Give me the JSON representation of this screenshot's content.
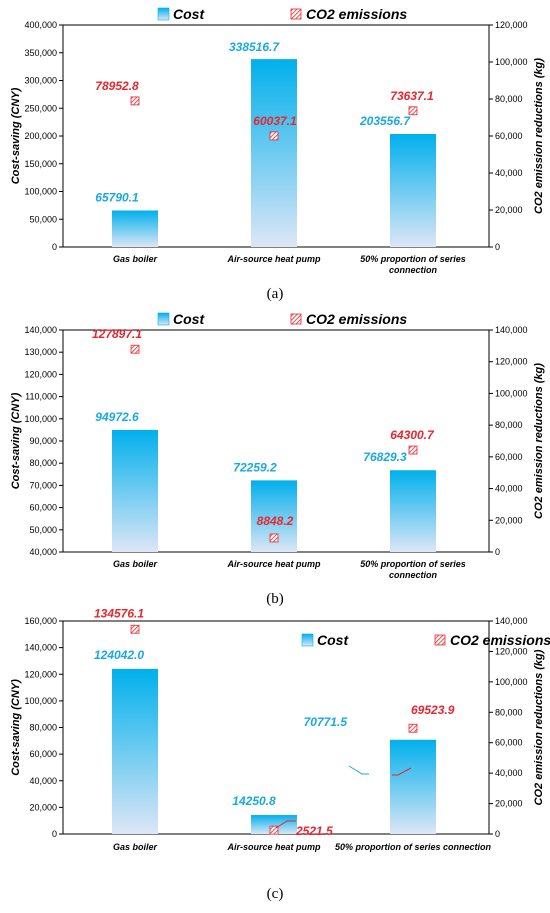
{
  "panels": [
    {
      "caption": "(a)",
      "legend": {
        "cost": "Cost",
        "co2": "CO2 emissions"
      },
      "ylabel_left": "Cost-saving (CNY)",
      "ylabel_right": "CO2 emission reductions  (kg)",
      "left_ticks": [
        "0",
        "50,000",
        "100,000",
        "150,000",
        "200,000",
        "250,000",
        "300,000",
        "350,000",
        "400,000"
      ],
      "right_ticks": [
        "0",
        "20,000",
        "40,000",
        "60,000",
        "80,000",
        "100,000",
        "120,000"
      ],
      "categories": [
        "Gas boiler",
        "Air-source heat pump",
        "50% proportion of series connection"
      ],
      "cost_labels": [
        "65790.1",
        "338516.7",
        "203556.7"
      ],
      "co2_labels": [
        "78952.8",
        "60037.1",
        "73637.1"
      ]
    },
    {
      "caption": "(b)",
      "legend": {
        "cost": "Cost",
        "co2": "CO2 emissions"
      },
      "ylabel_left": "Cost-saving (CNY)",
      "ylabel_right": "CO2 emission reductions  (kg)",
      "left_ticks": [
        "40,000",
        "50,000",
        "60,000",
        "70,000",
        "80,000",
        "90,000",
        "100,000",
        "110,000",
        "120,000",
        "130,000",
        "140,000"
      ],
      "right_ticks": [
        "0",
        "20,000",
        "40,000",
        "60,000",
        "80,000",
        "100,000",
        "120,000",
        "140,000"
      ],
      "categories": [
        "Gas boiler",
        "Air-source heat pump",
        "50% proportion of series connection"
      ],
      "cost_labels": [
        "94972.6",
        "72259.2",
        "76829.3"
      ],
      "co2_labels": [
        "127897.1",
        "8848.2",
        "64300.7"
      ]
    },
    {
      "caption": "(c)",
      "legend": {
        "cost": "Cost",
        "co2": "CO2 emissions"
      },
      "ylabel_left": "Cost-saving (CNY)",
      "ylabel_right": "CO2 emission reductions  (kg)",
      "left_ticks": [
        "0",
        "20,000",
        "40,000",
        "60,000",
        "80,000",
        "100,000",
        "120,000",
        "140,000",
        "160,000"
      ],
      "right_ticks": [
        "0",
        "20,000",
        "40,000",
        "60,000",
        "80,000",
        "100,000",
        "120,000",
        "140,000"
      ],
      "categories": [
        "Gas boiler",
        "Air-source heat pump",
        "50% proportion of series connection"
      ],
      "cost_labels": [
        "124042.0",
        "14250.8",
        "70771.5"
      ],
      "co2_labels": [
        "134576.1",
        "2521.5",
        "69523.9"
      ]
    }
  ],
  "colors": {
    "bar_top": "#00b0ec",
    "bar_bottom": "#dde6f6",
    "cost_text": "#19a9e0",
    "co2_text": "#e8262d",
    "marker": "#e8262d"
  },
  "chart_data": [
    {
      "type": "bar",
      "categories": [
        "Gas boiler",
        "Air-source heat pump",
        "50% proportion of series connection"
      ],
      "series": [
        {
          "name": "Cost",
          "axis": "left",
          "values": [
            65790.1,
            338516.7,
            203556.7
          ]
        },
        {
          "name": "CO2 emissions",
          "axis": "right",
          "marker": "square",
          "values": [
            78952.8,
            60037.1,
            73637.1
          ]
        }
      ],
      "ylabel": "Cost-saving (CNY)",
      "y2label": "CO2 emission reductions  (kg)",
      "ylim": [
        0,
        400000
      ],
      "y2lim": [
        0,
        120000
      ],
      "legend": "top"
    },
    {
      "type": "bar",
      "categories": [
        "Gas boiler",
        "Air-source heat pump",
        "50% proportion of series connection"
      ],
      "series": [
        {
          "name": "Cost",
          "axis": "left",
          "values": [
            94972.6,
            72259.2,
            76829.3
          ]
        },
        {
          "name": "CO2 emissions",
          "axis": "right",
          "marker": "square",
          "values": [
            127897.1,
            8848.2,
            64300.7
          ]
        }
      ],
      "ylabel": "Cost-saving (CNY)",
      "y2label": "CO2 emission reductions  (kg)",
      "ylim": [
        40000,
        140000
      ],
      "y2lim": [
        0,
        140000
      ],
      "legend": "top"
    },
    {
      "type": "bar",
      "categories": [
        "Gas boiler",
        "Air-source heat pump",
        "50% proportion of series connection"
      ],
      "series": [
        {
          "name": "Cost",
          "axis": "left",
          "values": [
            124042.0,
            14250.8,
            70771.5
          ]
        },
        {
          "name": "CO2 emissions",
          "axis": "right",
          "marker": "square",
          "values": [
            134576.1,
            2521.5,
            69523.9
          ]
        }
      ],
      "ylabel": "Cost-saving (CNY)",
      "y2label": "CO2 emission reductions  (kg)",
      "ylim": [
        0,
        160000
      ],
      "y2lim": [
        0,
        140000
      ],
      "legend": "top-right"
    }
  ]
}
